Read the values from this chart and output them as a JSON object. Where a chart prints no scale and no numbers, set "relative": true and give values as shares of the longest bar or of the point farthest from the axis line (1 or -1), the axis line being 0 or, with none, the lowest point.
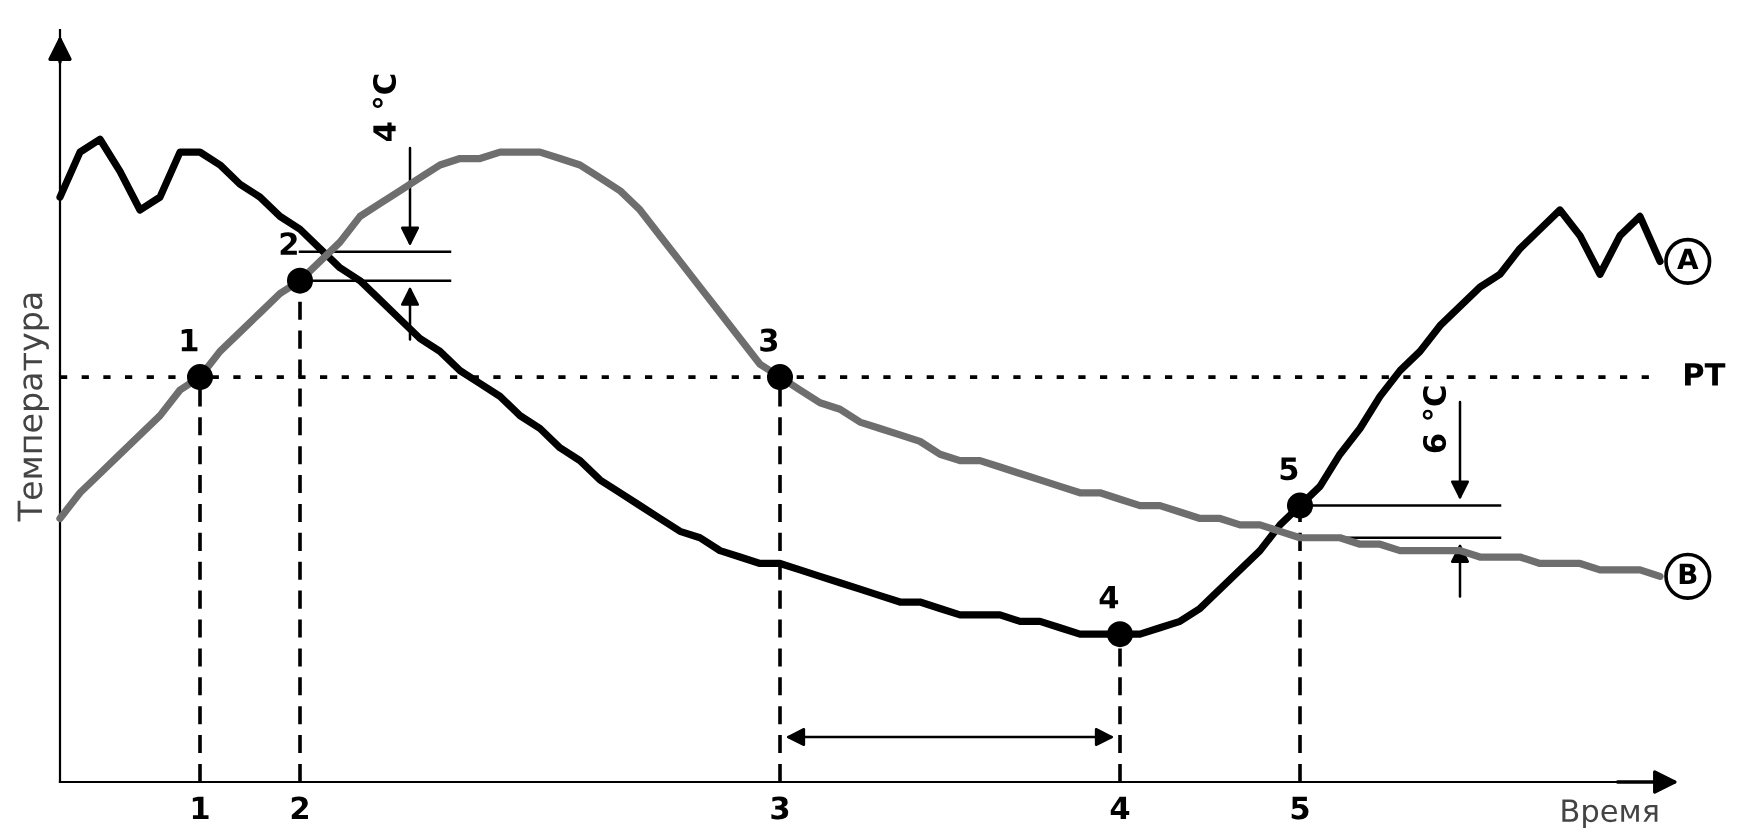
{
  "chart_data": {
    "type": "line",
    "relative": true,
    "xlabel": "Время",
    "ylabel": "Температура",
    "categories": [
      null,
      null,
      null,
      null,
      null,
      null,
      null,
      "1",
      null,
      null,
      null,
      null,
      "2",
      null,
      null,
      null,
      null,
      null,
      null,
      null,
      null,
      null,
      null,
      null,
      null,
      null,
      null,
      null,
      null,
      null,
      null,
      null,
      null,
      null,
      null,
      null,
      "3",
      null,
      null,
      null,
      null,
      null,
      null,
      null,
      null,
      null,
      null,
      null,
      null,
      null,
      null,
      null,
      null,
      "4",
      null,
      null,
      null,
      null,
      null,
      null,
      null,
      null,
      "5",
      null,
      null,
      null,
      null,
      null,
      null,
      null,
      null,
      null,
      null,
      null,
      null,
      null,
      null,
      null,
      null,
      null,
      null
    ],
    "series": [
      {
        "name": "A",
        "color": "#000000",
        "values": [
          0.91,
          0.98,
          1.0,
          0.95,
          0.89,
          0.91,
          0.98,
          0.98,
          0.96,
          0.93,
          0.91,
          0.88,
          0.86,
          0.83,
          0.8,
          0.78,
          0.75,
          0.72,
          0.69,
          0.67,
          0.64,
          0.62,
          0.6,
          0.57,
          0.55,
          0.52,
          0.5,
          0.47,
          0.45,
          0.43,
          0.41,
          0.39,
          0.38,
          0.36,
          0.35,
          0.34,
          0.34,
          0.33,
          0.32,
          0.31,
          0.3,
          0.29,
          0.28,
          0.28,
          0.27,
          0.26,
          0.26,
          0.26,
          0.25,
          0.25,
          0.24,
          0.23,
          0.23,
          0.23,
          0.23,
          0.24,
          0.25,
          0.27,
          0.3,
          0.33,
          0.36,
          0.4,
          0.43,
          0.46,
          0.51,
          0.55,
          0.6,
          0.64,
          0.67,
          0.71,
          0.74,
          0.77,
          0.79,
          0.83,
          0.86,
          0.89,
          0.85,
          0.79,
          0.85,
          0.88,
          0.81
        ]
      },
      {
        "name": "B",
        "color": "#6e6e6e",
        "values": [
          0.41,
          0.45,
          0.48,
          0.51,
          0.54,
          0.57,
          0.61,
          0.63,
          0.67,
          0.7,
          0.73,
          0.76,
          0.78,
          0.81,
          0.84,
          0.88,
          0.9,
          0.92,
          0.94,
          0.96,
          0.97,
          0.97,
          0.98,
          0.98,
          0.98,
          0.97,
          0.96,
          0.94,
          0.92,
          0.89,
          0.85,
          0.81,
          0.77,
          0.73,
          0.69,
          0.65,
          0.63,
          0.61,
          0.59,
          0.58,
          0.56,
          0.55,
          0.54,
          0.53,
          0.51,
          0.5,
          0.5,
          0.49,
          0.48,
          0.47,
          0.46,
          0.45,
          0.45,
          0.44,
          0.43,
          0.43,
          0.42,
          0.41,
          0.41,
          0.4,
          0.4,
          0.39,
          0.38,
          0.38,
          0.38,
          0.37,
          0.37,
          0.36,
          0.36,
          0.36,
          0.36,
          0.35,
          0.35,
          0.35,
          0.34,
          0.34,
          0.34,
          0.33,
          0.33,
          0.33,
          0.32
        ]
      },
      {
        "type": "lollipop",
        "color": "#000000",
        "marker": "circle",
        "line_style": "dashed",
        "values": [
          null,
          null,
          null,
          null,
          null,
          null,
          null,
          0.63,
          null,
          null,
          null,
          null,
          0.78,
          null,
          null,
          null,
          null,
          null,
          null,
          null,
          null,
          null,
          null,
          null,
          null,
          null,
          null,
          null,
          null,
          null,
          null,
          null,
          null,
          null,
          null,
          null,
          0.63,
          null,
          null,
          null,
          null,
          null,
          null,
          null,
          null,
          null,
          null,
          null,
          null,
          null,
          null,
          null,
          null,
          0.23,
          null,
          null,
          null,
          null,
          null,
          null,
          null,
          null,
          0.43,
          null,
          null,
          null,
          null,
          null,
          null,
          null,
          null,
          null,
          null,
          null,
          null,
          null,
          null,
          null,
          null,
          null,
          null
        ]
      }
    ],
    "ref_lines": [
      {
        "axis": "y",
        "value": 0.63,
        "label": "РТ",
        "color": "#000000",
        "line_style": "dotted"
      }
    ],
    "annotations": [
      {
        "text": "1",
        "x": "1",
        "y": 0.63
      },
      {
        "text": "2",
        "x": "2",
        "y": 0.78
      },
      {
        "text": "3",
        "x": "3",
        "y": 0.63
      },
      {
        "text": "4",
        "x": "4",
        "y": 0.23
      },
      {
        "text": "5",
        "x": "5",
        "y": 0.43
      },
      "4 °C",
      "6 °C"
    ]
  }
}
